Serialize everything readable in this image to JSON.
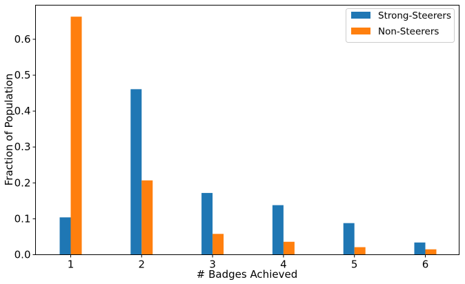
{
  "chart_data": {
    "type": "bar",
    "categories": [
      "1",
      "2",
      "3",
      "4",
      "5",
      "6"
    ],
    "series": [
      {
        "name": "Strong-Steerers",
        "color": "#1f77b4",
        "values": [
          0.104,
          0.461,
          0.172,
          0.138,
          0.088,
          0.034
        ]
      },
      {
        "name": "Non-Steerers",
        "color": "#ff7f0e",
        "values": [
          0.663,
          0.207,
          0.058,
          0.036,
          0.021,
          0.015
        ]
      }
    ],
    "xlabel": "# Badges Achieved",
    "ylabel": "Fraction of Population",
    "ylim": [
      0,
      0.695
    ],
    "yticks": [
      "0.0",
      "0.1",
      "0.2",
      "0.3",
      "0.4",
      "0.5",
      "0.6"
    ],
    "grid": false,
    "legend": "top-right"
  }
}
